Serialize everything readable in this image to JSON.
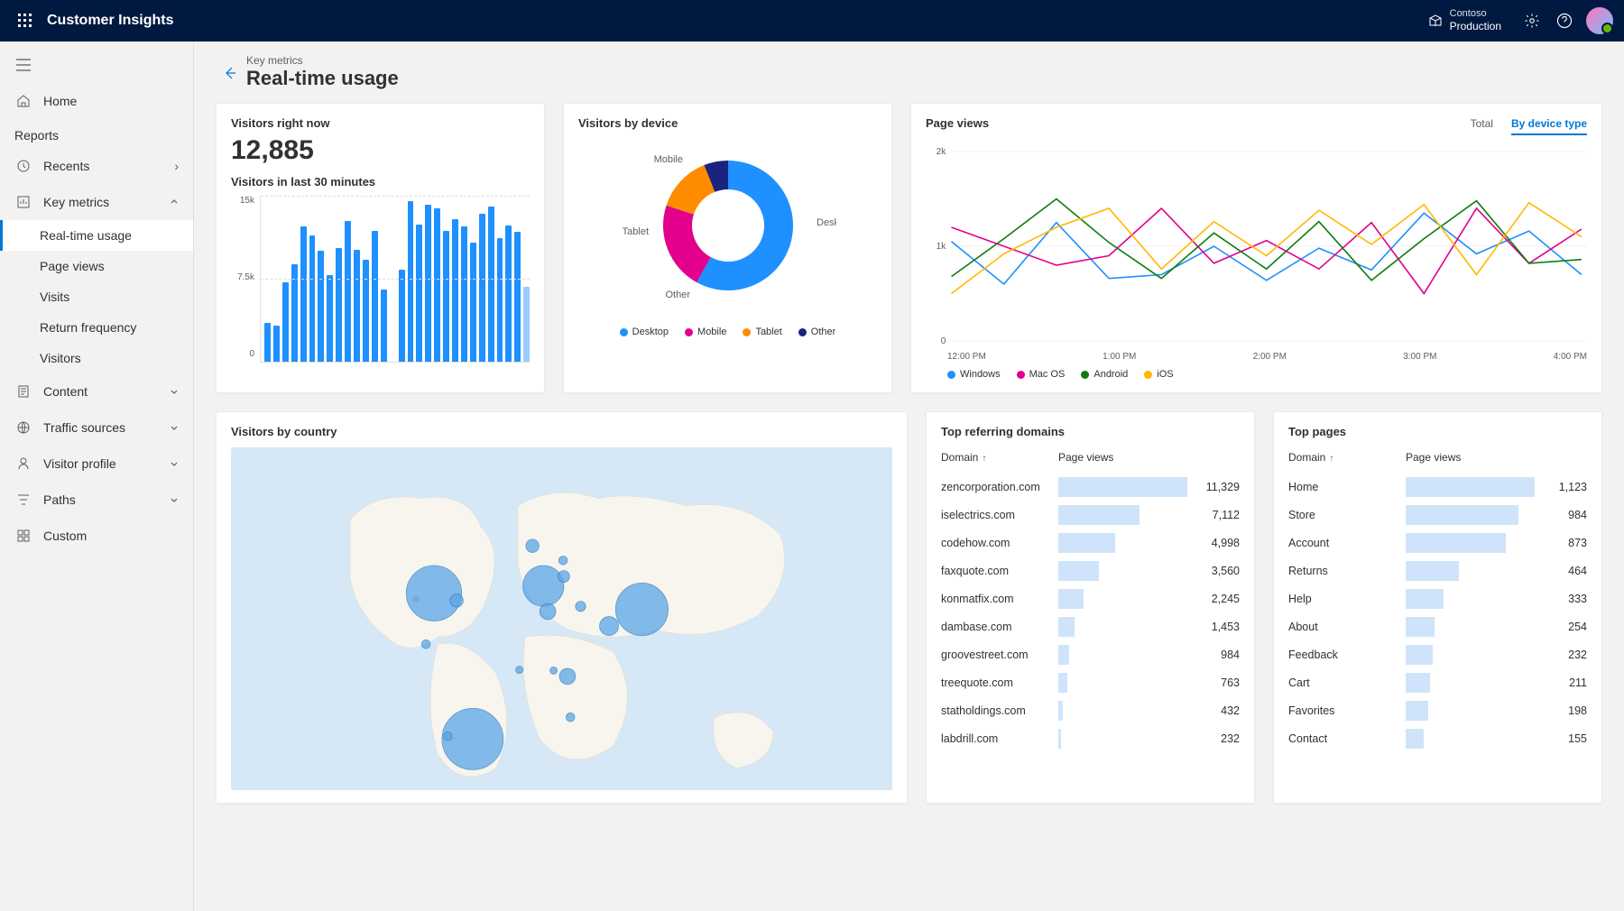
{
  "app": {
    "name": "Customer Insights"
  },
  "org": {
    "tenant": "Contoso",
    "env": "Production"
  },
  "sidebar": {
    "home": "Home",
    "section_reports": "Reports",
    "recents": "Recents",
    "key_metrics": "Key metrics",
    "subs": {
      "realtime": "Real-time usage",
      "pageviews": "Page views",
      "visits": "Visits",
      "return_freq": "Return frequency",
      "visitors": "Visitors"
    },
    "content": "Content",
    "traffic": "Traffic sources",
    "visitor_profile": "Visitor profile",
    "paths": "Paths",
    "custom": "Custom"
  },
  "breadcrumb": "Key metrics",
  "page_title": "Real-time usage",
  "visitors_now": {
    "title": "Visitors right now",
    "value": "12,885",
    "subtitle": "Visitors in last 30 minutes",
    "chart": {
      "type": "bar",
      "y_ticks": [
        "15k",
        "7.5k",
        "0"
      ],
      "ymax": 15000,
      "color": "#1e90ff",
      "values": [
        3500,
        3300,
        7200,
        8800,
        12200,
        11400,
        10000,
        7800,
        10300,
        12700,
        10100,
        9200,
        11800,
        6500,
        0,
        8300,
        14500,
        12400,
        14200,
        13900,
        11800,
        12900,
        12200,
        10800,
        13400,
        14000,
        11200,
        12300,
        11700,
        6800
      ],
      "last_partial": true
    }
  },
  "by_device": {
    "title": "Visitors by device",
    "type": "donut",
    "slices": [
      {
        "label": "Desktop",
        "value": 58,
        "color": "#1e90ff"
      },
      {
        "label": "Mobile",
        "value": 22,
        "color": "#e3008c"
      },
      {
        "label": "Tablet",
        "value": 14,
        "color": "#ff8c00"
      },
      {
        "label": "Other",
        "value": 6,
        "color": "#1a237e"
      }
    ]
  },
  "page_views": {
    "title": "Page views",
    "tabs": {
      "total": "Total",
      "by_device": "By device type"
    },
    "active_tab": "by_device",
    "type": "line",
    "ylim": [
      0,
      2000
    ],
    "y_ticks": [
      "2k",
      "1k",
      "0"
    ],
    "x_labels": [
      "12:00 PM",
      "1:00 PM",
      "2:00 PM",
      "3:00 PM",
      "4:00 PM"
    ],
    "series": [
      {
        "label": "Windows",
        "color": "#1e90ff",
        "values": [
          1050,
          600,
          1250,
          660,
          700,
          1000,
          640,
          980,
          750,
          1350,
          920,
          1160,
          700
        ]
      },
      {
        "label": "Mac OS",
        "color": "#e3008c",
        "values": [
          1200,
          1000,
          800,
          900,
          1400,
          820,
          1060,
          760,
          1250,
          500,
          1400,
          820,
          1180
        ]
      },
      {
        "label": "Android",
        "color": "#107c10",
        "values": [
          680,
          1080,
          1500,
          1040,
          660,
          1140,
          760,
          1260,
          640,
          1080,
          1480,
          820,
          860
        ]
      },
      {
        "label": "iOS",
        "color": "#ffb900",
        "values": [
          500,
          920,
          1200,
          1400,
          760,
          1260,
          900,
          1380,
          1020,
          1440,
          700,
          1460,
          1100
        ]
      }
    ]
  },
  "by_country": {
    "title": "Visitors by country",
    "background_color": "#d6e8f5",
    "land_color": "#f8f5ee",
    "bubble_color": "#5aa6e6",
    "bubble_stroke": "#2a7bc4",
    "grey_bubble": "#b8b8b8",
    "bubbles": [
      {
        "x": 175,
        "y": 200,
        "r": 38
      },
      {
        "x": 206,
        "y": 210,
        "r": 9
      },
      {
        "x": 164,
        "y": 270,
        "r": 6
      },
      {
        "x": 228,
        "y": 400,
        "r": 42
      },
      {
        "x": 310,
        "y": 135,
        "r": 9
      },
      {
        "x": 325,
        "y": 190,
        "r": 28
      },
      {
        "x": 352,
        "y": 155,
        "r": 6
      },
      {
        "x": 353,
        "y": 177,
        "r": 8
      },
      {
        "x": 331,
        "y": 225,
        "r": 11
      },
      {
        "x": 376,
        "y": 218,
        "r": 7
      },
      {
        "x": 292,
        "y": 305,
        "r": 5
      },
      {
        "x": 339,
        "y": 306,
        "r": 5
      },
      {
        "x": 358,
        "y": 314,
        "r": 11
      },
      {
        "x": 362,
        "y": 370,
        "r": 6
      },
      {
        "x": 415,
        "y": 245,
        "r": 13
      },
      {
        "x": 460,
        "y": 222,
        "r": 36
      },
      {
        "x": 194,
        "y": 396,
        "r": 6
      }
    ],
    "grey_bubbles": [
      {
        "x": 150,
        "y": 208,
        "r": 5
      }
    ]
  },
  "referring": {
    "title": "Top referring domains",
    "col1": "Domain",
    "col2": "Page views",
    "max": 11329,
    "bar_color": "#cfe4fa",
    "rows": [
      {
        "name": "zencorporation.com",
        "value": 11329,
        "display": "11,329"
      },
      {
        "name": "iselectrics.com",
        "value": 7112,
        "display": "7,112"
      },
      {
        "name": "codehow.com",
        "value": 4998,
        "display": "4,998"
      },
      {
        "name": "faxquote.com",
        "value": 3560,
        "display": "3,560"
      },
      {
        "name": "konmatfix.com",
        "value": 2245,
        "display": "2,245"
      },
      {
        "name": "dambase.com",
        "value": 1453,
        "display": "1,453"
      },
      {
        "name": "groovestreet.com",
        "value": 984,
        "display": "984"
      },
      {
        "name": "treequote.com",
        "value": 763,
        "display": "763"
      },
      {
        "name": "statholdings.com",
        "value": 432,
        "display": "432"
      },
      {
        "name": "labdrill.com",
        "value": 232,
        "display": "232"
      }
    ]
  },
  "top_pages": {
    "title": "Top pages",
    "col1": "Domain",
    "col2": "Page views",
    "max": 1123,
    "bar_color": "#cfe4fa",
    "rows": [
      {
        "name": "Home",
        "value": 1123,
        "display": "1,123"
      },
      {
        "name": "Store",
        "value": 984,
        "display": "984"
      },
      {
        "name": "Account",
        "value": 873,
        "display": "873"
      },
      {
        "name": "Returns",
        "value": 464,
        "display": "464"
      },
      {
        "name": "Help",
        "value": 333,
        "display": "333"
      },
      {
        "name": "About",
        "value": 254,
        "display": "254"
      },
      {
        "name": "Feedback",
        "value": 232,
        "display": "232"
      },
      {
        "name": "Cart",
        "value": 211,
        "display": "211"
      },
      {
        "name": "Favorites",
        "value": 198,
        "display": "198"
      },
      {
        "name": "Contact",
        "value": 155,
        "display": "155"
      }
    ]
  }
}
